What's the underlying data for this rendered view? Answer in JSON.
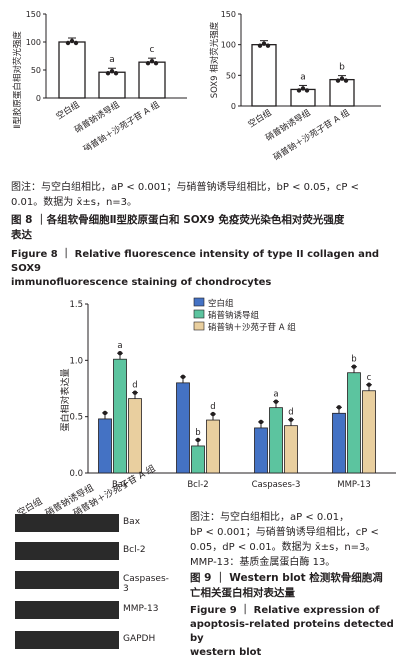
{
  "fig8": {
    "charts": [
      {
        "type": "bar",
        "ylabel": "Ⅱ型胶原蛋白相对荧光强度",
        "categories": [
          "空白组",
          "硝普钠诱导组",
          "硝普钠＋沙苑子苷 A 组"
        ],
        "values": [
          100,
          46,
          64
        ],
        "markers": [
          "",
          "a",
          "c"
        ],
        "ylim": [
          0,
          150
        ],
        "yticks": [
          "0",
          "50",
          "100",
          "150"
        ]
      },
      {
        "type": "bar",
        "ylabel": "SOX9 相对荧光强度",
        "categories": [
          "空白组",
          "硝普钠诱导组",
          "硝普钠＋沙苑子苷 A 组"
        ],
        "values": [
          100,
          27,
          43
        ],
        "markers": [
          "",
          "a",
          "b"
        ],
        "ylim": [
          0,
          150
        ],
        "yticks": [
          "0",
          "50",
          "100",
          "150"
        ]
      }
    ],
    "note_line1": "图注：与空白组相比，aP < 0.001；与硝普钠诱导组相比，bP < 0.05，cP <",
    "note_line2": "0.01。数据为 x̄±s，n=3。",
    "caption_cn_1": "图 8 ｜各组软骨细胞Ⅱ型胶原蛋白和 SOX9 免疫荧光染色相对荧光强度",
    "caption_cn_2": "表达",
    "caption_en_1": "Figure 8 ｜ Relative fluorescence intensity of type II collagen and SOX9",
    "caption_en_2": "immunofluorescence staining of chondrocytes"
  },
  "fig9": {
    "chart_data": {
      "type": "bar",
      "ylabel": "蛋白相对表达量",
      "categories": [
        "Bax",
        "Bcl-2",
        "Caspases-3",
        "MMP-13"
      ],
      "series": [
        {
          "name": "空白组",
          "values": [
            0.48,
            0.8,
            0.4,
            0.53
          ],
          "markers": [
            "",
            "",
            "",
            ""
          ]
        },
        {
          "name": "硝普钠诱导组",
          "values": [
            1.01,
            0.24,
            0.58,
            0.89
          ],
          "markers": [
            "a",
            "b",
            "a",
            "b"
          ]
        },
        {
          "name": "硝普钠＋沙苑子苷 A 组",
          "values": [
            0.66,
            0.47,
            0.42,
            0.73
          ],
          "markers": [
            "d",
            "d",
            "d",
            "c"
          ]
        }
      ],
      "ylim": [
        0,
        1.5
      ],
      "yticks": [
        "0.0",
        "0.5",
        "1.0",
        "1.5"
      ],
      "legend": "top-right"
    },
    "blot_columns": [
      "空白组",
      "硝普钠诱导组",
      "硝普钠＋沙苑子苷 A 组"
    ],
    "blot_rows": [
      "Bax",
      "Bcl-2",
      "Caspases-3",
      "MMP-13",
      "GAPDH"
    ],
    "note_lines": [
      "图注：与空白组相比，aP < 0.01，",
      "bP < 0.001；与硝普钠诱导组相比，cP <",
      "0.05，dP < 0.01。数据为 x̄±s，n=3。",
      "MMP-13：基质金属蛋白酶 13。"
    ],
    "caption_cn_lines": [
      "图 9 ｜ Western blot 检测软骨细胞凋",
      "亡相关蛋白相对表达量"
    ],
    "caption_en_lines": [
      "Figure 9 ｜ Relative expression of",
      "apoptosis-related proteins detected by",
      "western blot"
    ]
  },
  "colors": {
    "control": "#4472c4",
    "model": "#5cc49f",
    "treat": "#e9cf9f",
    "caption_blue": "#1b5c9e"
  }
}
